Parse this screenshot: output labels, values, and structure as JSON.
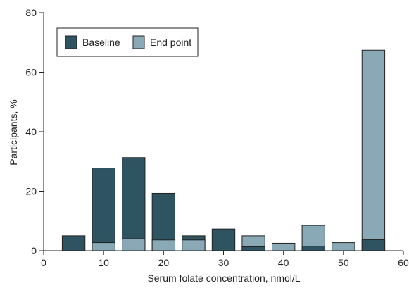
{
  "chart_data": {
    "type": "bar",
    "xlabel": "Serum folate concentration, nmol/L",
    "ylabel": "Participants, %",
    "xlim": [
      0,
      60
    ],
    "ylim": [
      0,
      80
    ],
    "xticks": [
      0,
      10,
      20,
      30,
      40,
      50,
      60
    ],
    "yticks": [
      0,
      20,
      40,
      60,
      80
    ],
    "grid": false,
    "legend_position": "top-left",
    "bin_centers": [
      5,
      10,
      15,
      20,
      25,
      30,
      35,
      40,
      45,
      50,
      55
    ],
    "bar_width": 3.8,
    "series": [
      {
        "name": "Baseline",
        "color": "#2e5461",
        "values": [
          5.0,
          27.8,
          31.3,
          19.3,
          5.0,
          7.3,
          1.3,
          0.0,
          1.5,
          0.0,
          3.7
        ]
      },
      {
        "name": "End point",
        "color": "#8aa9b7",
        "values": [
          0.0,
          2.7,
          4.0,
          3.6,
          3.6,
          0.0,
          5.0,
          2.5,
          8.5,
          2.7,
          67.4
        ]
      }
    ]
  }
}
